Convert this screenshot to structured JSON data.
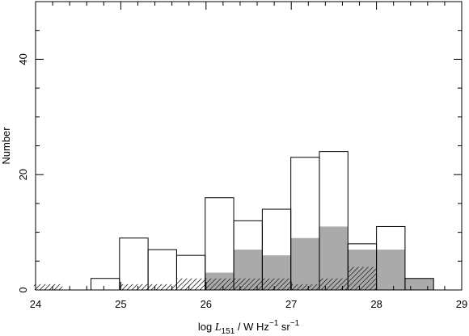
{
  "chart_data": {
    "type": "histogram",
    "xlabel": {
      "prefix": "log ",
      "symbol": "L",
      "symbol_sub": "151",
      "middle": " / W Hz",
      "exp1": "−1",
      "middle2": " sr",
      "exp2": "−1"
    },
    "ylabel": "Number",
    "xlim": [
      24,
      29
    ],
    "ylim": [
      0,
      50
    ],
    "xticks": [
      "24",
      "25",
      "26",
      "27",
      "28",
      "29"
    ],
    "yticks": [
      "0",
      "20",
      "40"
    ],
    "grid": false,
    "bin_width": 0.335,
    "series": [
      {
        "style": "open-outline",
        "color": "#000000",
        "bins": [
          {
            "x0": 24.65,
            "count": 2
          },
          {
            "x0": 24.985,
            "count": 9
          },
          {
            "x0": 25.32,
            "count": 7
          },
          {
            "x0": 25.655,
            "count": 6
          },
          {
            "x0": 25.99,
            "count": 16
          },
          {
            "x0": 26.325,
            "count": 12
          },
          {
            "x0": 26.66,
            "count": 14
          },
          {
            "x0": 26.995,
            "count": 23
          },
          {
            "x0": 27.33,
            "count": 24
          },
          {
            "x0": 27.665,
            "count": 8
          },
          {
            "x0": 28.0,
            "count": 11
          },
          {
            "x0": 28.335,
            "count": 2
          }
        ]
      },
      {
        "style": "filled",
        "color": "#aaaaaa",
        "bins": [
          {
            "x0": 25.99,
            "count": 3
          },
          {
            "x0": 26.325,
            "count": 7
          },
          {
            "x0": 26.66,
            "count": 6
          },
          {
            "x0": 26.995,
            "count": 9
          },
          {
            "x0": 27.33,
            "count": 11
          },
          {
            "x0": 27.665,
            "count": 7
          },
          {
            "x0": 28.0,
            "count": 7
          },
          {
            "x0": 28.335,
            "count": 2
          }
        ]
      },
      {
        "style": "hatched",
        "color": "#333333",
        "bins": [
          {
            "x0": 23.98,
            "count": 1
          },
          {
            "x0": 24.985,
            "count": 1
          },
          {
            "x0": 25.32,
            "count": 1
          },
          {
            "x0": 25.655,
            "count": 2
          },
          {
            "x0": 25.99,
            "count": 2
          },
          {
            "x0": 26.325,
            "count": 2
          },
          {
            "x0": 26.66,
            "count": 2
          },
          {
            "x0": 26.995,
            "count": 1
          },
          {
            "x0": 27.33,
            "count": 2
          },
          {
            "x0": 27.665,
            "count": 4
          }
        ]
      }
    ]
  }
}
